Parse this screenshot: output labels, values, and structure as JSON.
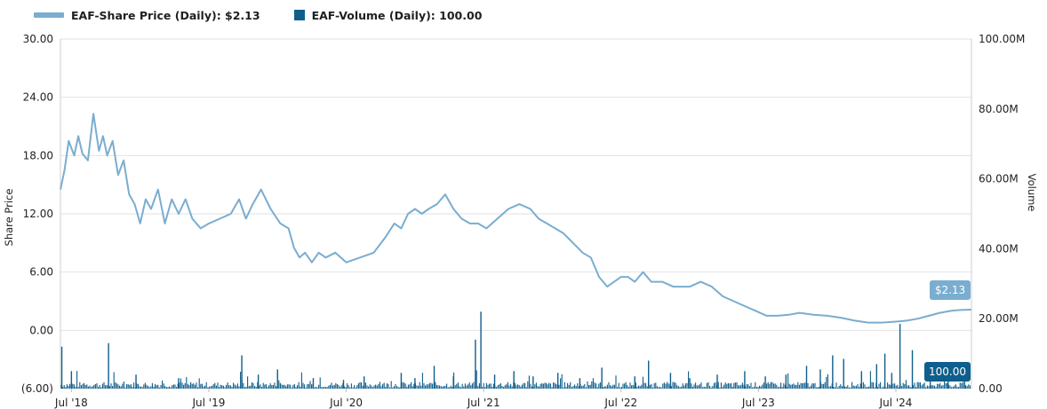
{
  "legend": [
    {
      "label": "EAF-Share Price (Daily): $2.13",
      "color": "#7aadd0"
    },
    {
      "label": "EAF-Volume (Daily): 100.00",
      "color": "#0f5e8c"
    }
  ],
  "chart_data": {
    "type": "line",
    "title": "",
    "ylabel_left": "Share Price",
    "ylabel_right": "Volume",
    "y_left_ticks": [
      "30.00",
      "24.00",
      "18.00",
      "12.00",
      "6.00",
      "0.00",
      "(6.00)"
    ],
    "y_left_range": [
      -6,
      30
    ],
    "y_right_ticks": [
      "100.00M",
      "80.00M",
      "60.00M",
      "40.00M",
      "20.00M",
      "0.00"
    ],
    "y_right_range": [
      0,
      100000000
    ],
    "x_ticks": [
      "Jul '18",
      "Jul '19",
      "Jul '20",
      "Jul '21",
      "Jul '22",
      "Jul '23",
      "Jul '24"
    ],
    "x_tick_positions": [
      2018.5,
      2019.5,
      2020.5,
      2021.5,
      2022.5,
      2023.5,
      2024.5
    ],
    "x_range": [
      2018.42,
      2025.05
    ],
    "grid": "horizontal",
    "legend_position": "top-left",
    "series": [
      {
        "name": "EAF-Share Price (Daily)",
        "axis": "left",
        "color": "#7aadd0",
        "x": [
          2018.42,
          2018.45,
          2018.48,
          2018.52,
          2018.55,
          2018.58,
          2018.62,
          2018.66,
          2018.7,
          2018.73,
          2018.76,
          2018.8,
          2018.84,
          2018.88,
          2018.92,
          2018.96,
          2019.0,
          2019.04,
          2019.08,
          2019.13,
          2019.18,
          2019.23,
          2019.28,
          2019.33,
          2019.38,
          2019.44,
          2019.5,
          2019.58,
          2019.66,
          2019.72,
          2019.77,
          2019.82,
          2019.88,
          2019.95,
          2020.02,
          2020.08,
          2020.12,
          2020.16,
          2020.2,
          2020.25,
          2020.3,
          2020.35,
          2020.42,
          2020.5,
          2020.6,
          2020.7,
          2020.78,
          2020.85,
          2020.9,
          2020.95,
          2021.0,
          2021.05,
          2021.1,
          2021.16,
          2021.22,
          2021.28,
          2021.34,
          2021.4,
          2021.46,
          2021.52,
          2021.6,
          2021.68,
          2021.76,
          2021.84,
          2021.9,
          2021.96,
          2022.02,
          2022.08,
          2022.15,
          2022.22,
          2022.28,
          2022.34,
          2022.4,
          2022.45,
          2022.5,
          2022.55,
          2022.6,
          2022.66,
          2022.72,
          2022.8,
          2022.88,
          2022.94,
          2023.0,
          2023.08,
          2023.16,
          2023.24,
          2023.32,
          2023.4,
          2023.48,
          2023.56,
          2023.64,
          2023.72,
          2023.8,
          2023.9,
          2024.0,
          2024.1,
          2024.2,
          2024.3,
          2024.4,
          2024.5,
          2024.58,
          2024.66,
          2024.74,
          2024.82,
          2024.9,
          2024.97,
          2025.05
        ],
        "y": [
          14.5,
          16.5,
          19.5,
          18.0,
          20.0,
          18.2,
          17.5,
          22.3,
          18.5,
          20.0,
          18.0,
          19.5,
          16.0,
          17.5,
          14.0,
          13.0,
          11.0,
          13.5,
          12.5,
          14.5,
          11.0,
          13.5,
          12.0,
          13.5,
          11.5,
          10.5,
          11.0,
          11.5,
          12.0,
          13.5,
          11.5,
          13.0,
          14.5,
          12.5,
          11.0,
          10.5,
          8.5,
          7.5,
          8.0,
          7.0,
          8.0,
          7.5,
          8.0,
          7.0,
          7.5,
          8.0,
          9.5,
          11.0,
          10.5,
          12.0,
          12.5,
          12.0,
          12.5,
          13.0,
          14.0,
          12.5,
          11.5,
          11.0,
          11.0,
          10.5,
          11.5,
          12.5,
          13.0,
          12.5,
          11.5,
          11.0,
          10.5,
          10.0,
          9.0,
          8.0,
          7.5,
          5.5,
          4.5,
          5.0,
          5.5,
          5.5,
          5.0,
          6.0,
          5.0,
          5.0,
          4.5,
          4.5,
          4.5,
          5.0,
          4.5,
          3.5,
          3.0,
          2.5,
          2.0,
          1.5,
          1.5,
          1.6,
          1.8,
          1.6,
          1.5,
          1.3,
          1.0,
          0.8,
          0.8,
          0.9,
          1.0,
          1.2,
          1.5,
          1.8,
          2.0,
          2.1,
          2.13
        ]
      },
      {
        "name": "EAF-Volume (Daily)",
        "axis": "right",
        "color": "#0f5e8c",
        "baseline": 1000000,
        "spikes_x": [
          2018.43,
          2018.5,
          2018.77,
          2018.97,
          2019.28,
          2019.74,
          2019.86,
          2020.0,
          2020.26,
          2020.48,
          2020.63,
          2020.9,
          2021.0,
          2021.14,
          2021.28,
          2021.44,
          2021.48,
          2021.58,
          2021.72,
          2021.86,
          2022.04,
          2022.2,
          2022.36,
          2022.6,
          2022.7,
          2022.86,
          2023.0,
          2023.2,
          2023.4,
          2023.55,
          2023.7,
          2023.85,
          2023.95,
          2024.04,
          2024.12,
          2024.25,
          2024.36,
          2024.42,
          2024.47,
          2024.53,
          2024.62,
          2024.75,
          2024.88,
          2025.0
        ],
        "spikes_y": [
          12000000,
          5000000,
          13000000,
          4000000,
          3000000,
          9500000,
          4000000,
          5500000,
          3000000,
          2500000,
          3500000,
          4500000,
          3000000,
          6500000,
          3500000,
          14000000,
          22000000,
          4000000,
          5000000,
          3500000,
          4500000,
          3000000,
          6000000,
          3500000,
          8000000,
          4500000,
          3000000,
          4000000,
          5000000,
          3500000,
          4000000,
          6500000,
          5500000,
          9500000,
          8500000,
          5000000,
          7000000,
          10000000,
          4500000,
          18500000,
          11000000,
          7000000,
          6000000,
          5000000
        ]
      }
    ],
    "callouts": [
      {
        "series": "EAF-Share Price (Daily)",
        "text": "$2.13",
        "color": "#7aadd0"
      },
      {
        "series": "EAF-Volume (Daily)",
        "text": "100.00",
        "color": "#0f5e8c"
      }
    ]
  }
}
